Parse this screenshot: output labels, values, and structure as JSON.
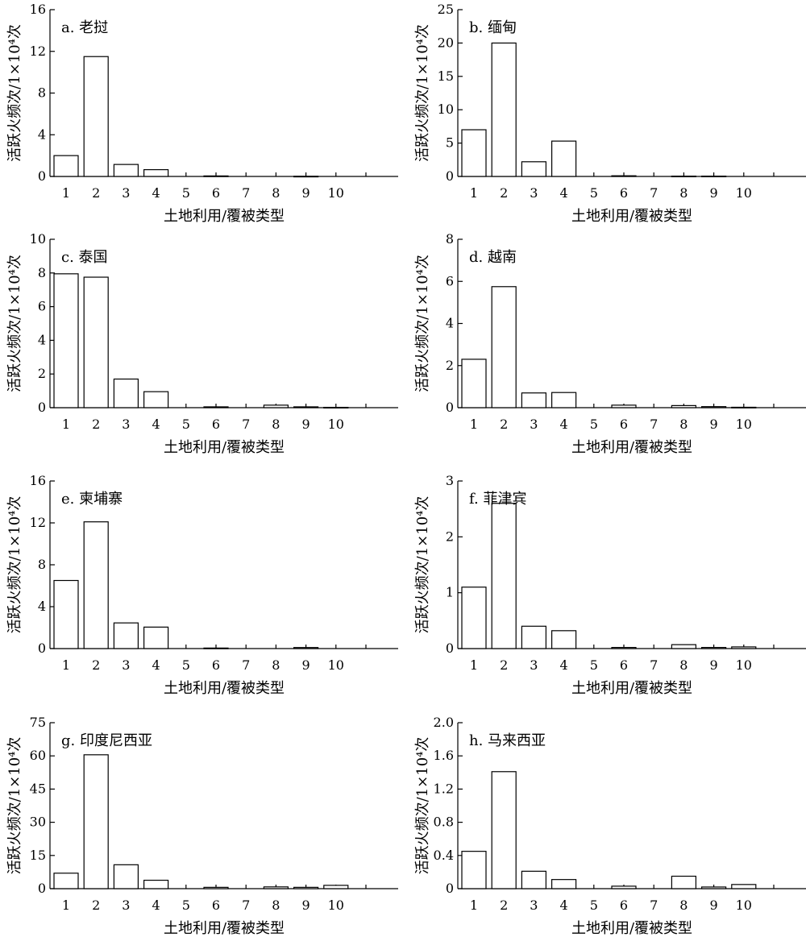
{
  "figure": {
    "chart_data": [
      {
        "type": "bar",
        "title": "a. 老挝",
        "xlabel": "土地利用/覆被类型",
        "ylabel": "活跃火频次/1×10⁴次",
        "categories": [
          "1",
          "2",
          "3",
          "4",
          "5",
          "6",
          "7",
          "8",
          "9",
          "10"
        ],
        "values": [
          2.0,
          11.5,
          1.15,
          0.65,
          0,
          0.05,
          0,
          0,
          0.02,
          0
        ],
        "ylim": [
          0,
          16
        ],
        "yticks": [
          "0",
          "4",
          "8",
          "12",
          "16"
        ],
        "grid": false,
        "legend": "none"
      },
      {
        "type": "bar",
        "title": "b. 缅甸",
        "xlabel": "土地利用/覆被类型",
        "ylabel": "活跃火频次/1×10⁴次",
        "categories": [
          "1",
          "2",
          "3",
          "4",
          "5",
          "6",
          "7",
          "8",
          "9",
          "10"
        ],
        "values": [
          7.0,
          20.0,
          2.2,
          5.3,
          0,
          0.1,
          0,
          0.05,
          0.05,
          0
        ],
        "ylim": [
          0,
          25
        ],
        "yticks": [
          "0",
          "5",
          "10",
          "15",
          "20",
          "25"
        ],
        "grid": false,
        "legend": "none"
      },
      {
        "type": "bar",
        "title": "c. 泰国",
        "xlabel": "土地利用/覆被类型",
        "ylabel": "活跃火频次/1×10⁴次",
        "categories": [
          "1",
          "2",
          "3",
          "4",
          "5",
          "6",
          "7",
          "8",
          "9",
          "10"
        ],
        "values": [
          7.95,
          7.75,
          1.7,
          0.95,
          0,
          0.05,
          0,
          0.15,
          0.05,
          0.02
        ],
        "ylim": [
          0,
          10
        ],
        "yticks": [
          "0",
          "2",
          "4",
          "6",
          "8",
          "10"
        ],
        "grid": false,
        "legend": "none"
      },
      {
        "type": "bar",
        "title": "d. 越南",
        "xlabel": "土地利用/覆被类型",
        "ylabel": "活跃火频次/1×10⁴次",
        "categories": [
          "1",
          "2",
          "3",
          "4",
          "5",
          "6",
          "7",
          "8",
          "9",
          "10"
        ],
        "values": [
          2.3,
          5.75,
          0.7,
          0.72,
          0,
          0.12,
          0,
          0.1,
          0.05,
          0.02
        ],
        "ylim": [
          0,
          8
        ],
        "yticks": [
          "0",
          "2",
          "4",
          "6",
          "8"
        ],
        "grid": false,
        "legend": "none"
      },
      {
        "type": "bar",
        "title": "e. 柬埔寨",
        "xlabel": "土地利用/覆被类型",
        "ylabel": "活跃火频次/1×10⁴次",
        "categories": [
          "1",
          "2",
          "3",
          "4",
          "5",
          "6",
          "7",
          "8",
          "9",
          "10"
        ],
        "values": [
          6.5,
          12.1,
          2.45,
          2.05,
          0,
          0.05,
          0,
          0,
          0.1,
          0
        ],
        "ylim": [
          0,
          16
        ],
        "yticks": [
          "0",
          "4",
          "8",
          "12",
          "16"
        ],
        "grid": false,
        "legend": "none"
      },
      {
        "type": "bar",
        "title": "f. 菲津宾",
        "xlabel": "土地利用/覆被类型",
        "ylabel": "活跃火频次/1×10⁴次",
        "categories": [
          "1",
          "2",
          "3",
          "4",
          "5",
          "6",
          "7",
          "8",
          "9",
          "10"
        ],
        "values": [
          1.1,
          2.6,
          0.4,
          0.32,
          0,
          0.02,
          0,
          0.07,
          0.02,
          0.03
        ],
        "ylim": [
          0,
          3
        ],
        "yticks": [
          "0",
          "1",
          "2",
          "3"
        ],
        "grid": false,
        "legend": "none"
      },
      {
        "type": "bar",
        "title": "g. 印度尼西亚",
        "xlabel": "土地利用/覆被类型",
        "ylabel": "活跃火频次/1×10⁴次",
        "categories": [
          "1",
          "2",
          "3",
          "4",
          "5",
          "6",
          "7",
          "8",
          "9",
          "10"
        ],
        "values": [
          7.0,
          60.5,
          10.8,
          3.8,
          0,
          0.6,
          0,
          0.8,
          0.6,
          1.5
        ],
        "ylim": [
          0,
          75
        ],
        "yticks": [
          "0",
          "15",
          "30",
          "45",
          "60",
          "75"
        ],
        "grid": false,
        "legend": "none"
      },
      {
        "type": "bar",
        "title": "h. 马来西亚",
        "xlabel": "土地利用/覆被类型",
        "ylabel": "活跃火频次/1×10⁴次",
        "categories": [
          "1",
          "2",
          "3",
          "4",
          "5",
          "6",
          "7",
          "8",
          "9",
          "10"
        ],
        "values": [
          0.45,
          1.41,
          0.21,
          0.11,
          0,
          0.03,
          0,
          0.15,
          0.02,
          0.05
        ],
        "ylim": [
          0,
          2.0
        ],
        "yticks": [
          "0",
          "0.4",
          "0.8",
          "1.2",
          "1.6",
          "2.0"
        ],
        "grid": false,
        "legend": "none"
      }
    ]
  }
}
